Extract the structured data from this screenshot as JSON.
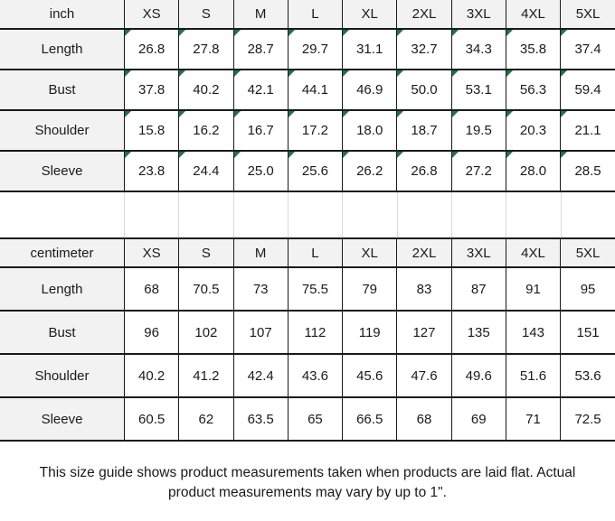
{
  "chart_data": [
    {
      "type": "table",
      "title": "inch",
      "corner_flags": true,
      "columns": [
        "inch",
        "XS",
        "S",
        "M",
        "L",
        "XL",
        "2XL",
        "3XL",
        "4XL",
        "5XL"
      ],
      "rows": [
        [
          "Length",
          "26.8",
          "27.8",
          "28.7",
          "29.7",
          "31.1",
          "32.7",
          "34.3",
          "35.8",
          "37.4"
        ],
        [
          "Bust",
          "37.8",
          "40.2",
          "42.1",
          "44.1",
          "46.9",
          "50.0",
          "53.1",
          "56.3",
          "59.4"
        ],
        [
          "Shoulder",
          "15.8",
          "16.2",
          "16.7",
          "17.2",
          "18.0",
          "18.7",
          "19.5",
          "20.3",
          "21.1"
        ],
        [
          "Sleeve",
          "23.8",
          "24.4",
          "25.0",
          "25.6",
          "26.2",
          "26.8",
          "27.2",
          "28.0",
          "28.5"
        ]
      ]
    },
    {
      "type": "table",
      "title": "centimeter",
      "corner_flags": false,
      "columns": [
        "centimeter",
        "XS",
        "S",
        "M",
        "L",
        "XL",
        "2XL",
        "3XL",
        "4XL",
        "5XL"
      ],
      "rows": [
        [
          "Length",
          "68",
          "70.5",
          "73",
          "75.5",
          "79",
          "83",
          "87",
          "91",
          "95"
        ],
        [
          "Bust",
          "96",
          "102",
          "107",
          "112",
          "119",
          "127",
          "135",
          "143",
          "151"
        ],
        [
          "Shoulder",
          "40.2",
          "41.2",
          "42.4",
          "43.6",
          "45.6",
          "47.6",
          "49.6",
          "51.6",
          "53.6"
        ],
        [
          "Sleeve",
          "60.5",
          "62",
          "63.5",
          "65",
          "66.5",
          "68",
          "69",
          "71",
          "72.5"
        ]
      ]
    }
  ],
  "footer": {
    "note": "This size guide shows product measurements taken when products are laid flat. Actual product measurements may vary by up to 1\"."
  },
  "colors": {
    "header_bg": "#f2f2f2",
    "border": "#1a1a1a",
    "gap_gridline": "#d9d9d9",
    "flag_green": "#217346",
    "text": "#1a1a1a"
  }
}
